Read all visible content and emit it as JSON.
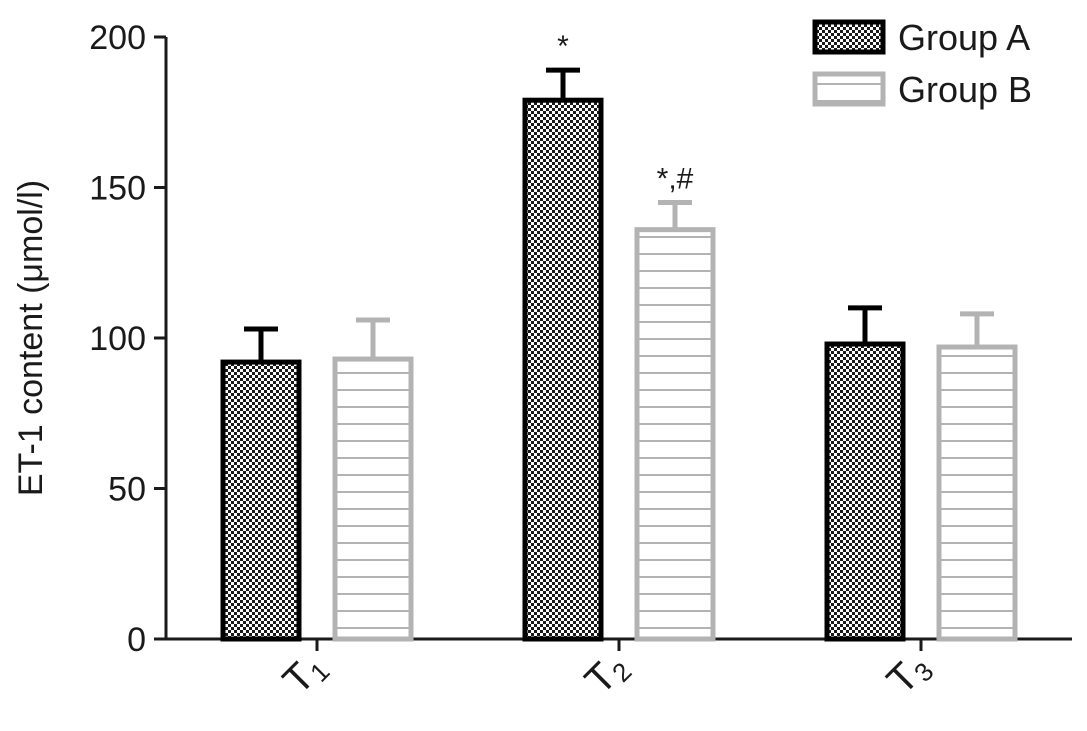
{
  "chart_data": {
    "type": "bar",
    "title": "",
    "xlabel": "",
    "ylabel": "ET-1 content (μmol/l)",
    "ylim": [
      0,
      200
    ],
    "yticks": [
      0,
      50,
      100,
      150,
      200
    ],
    "categories": [
      {
        "main": "T",
        "sub": "1"
      },
      {
        "main": "T",
        "sub": "2"
      },
      {
        "main": "T",
        "sub": "3"
      }
    ],
    "series": [
      {
        "name": "Group A",
        "values": [
          92,
          179,
          98
        ],
        "errors": [
          11,
          10,
          12
        ],
        "fill_pattern": "checker",
        "color": "#000000",
        "annotations": [
          "",
          "*",
          ""
        ]
      },
      {
        "name": "Group B",
        "values": [
          93,
          136,
          97
        ],
        "errors": [
          13,
          9,
          11
        ],
        "fill_pattern": "horizontal-lines",
        "color": "#b3b3b3",
        "annotations": [
          "",
          "*,#",
          ""
        ]
      }
    ],
    "legend_position": "top-right",
    "grid": false
  }
}
